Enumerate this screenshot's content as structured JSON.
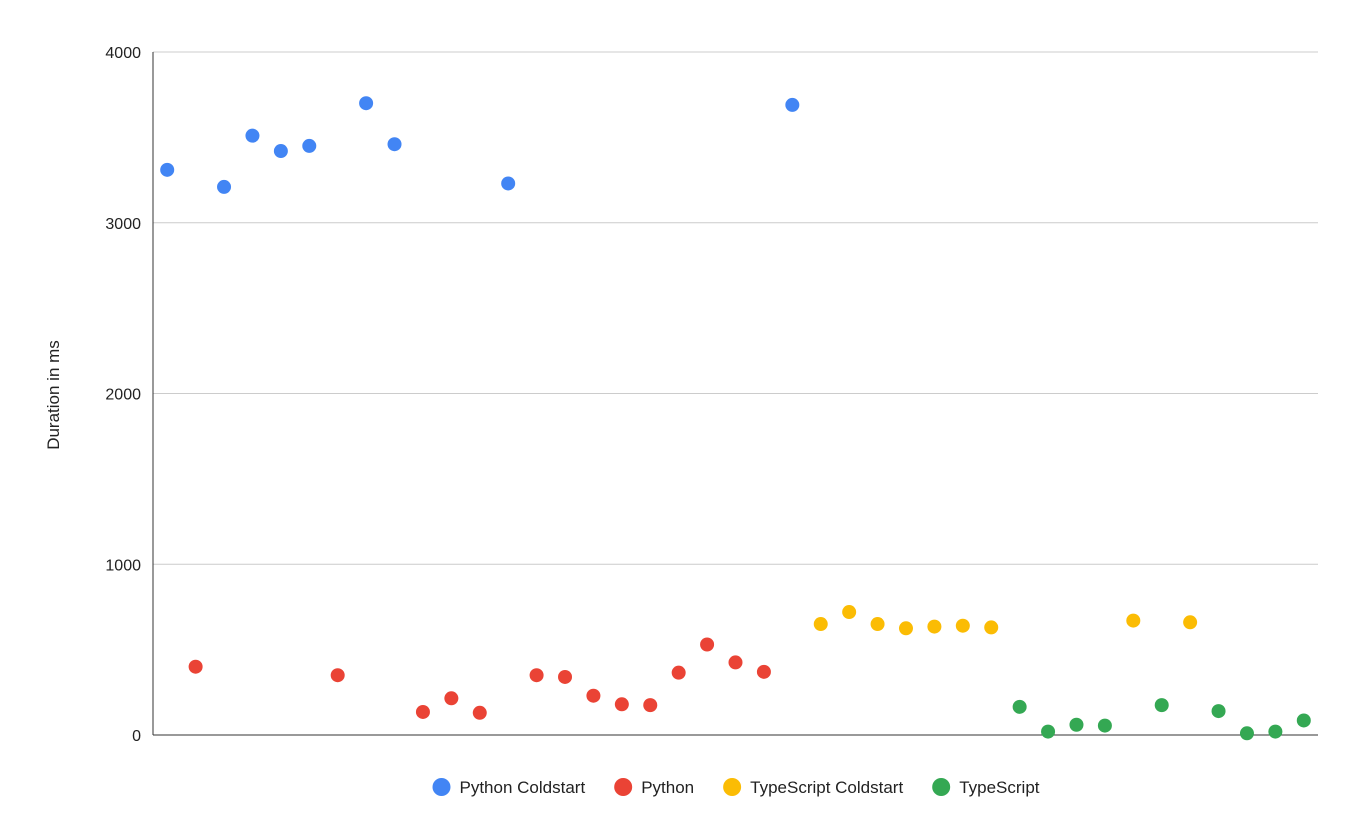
{
  "chart_data": {
    "type": "scatter",
    "title": "",
    "xlabel": "",
    "ylabel": "Duration in ms",
    "ylim": [
      0,
      4000
    ],
    "yticks": [
      "0",
      "1000",
      "2000",
      "3000",
      "4000"
    ],
    "xlim": [
      0.5,
      41.5
    ],
    "grid": true,
    "legend_position": "bottom",
    "series": [
      {
        "name": "Python Coldstart",
        "color": "#4285f4",
        "points": [
          [
            1,
            3310
          ],
          [
            3,
            3210
          ],
          [
            4,
            3510
          ],
          [
            5,
            3420
          ],
          [
            6,
            3450
          ],
          [
            8,
            3700
          ],
          [
            9,
            3460
          ],
          [
            13,
            3230
          ],
          [
            23,
            3690
          ]
        ]
      },
      {
        "name": "Python",
        "color": "#ea4335",
        "points": [
          [
            2,
            400
          ],
          [
            7,
            350
          ],
          [
            10,
            135
          ],
          [
            11,
            215
          ],
          [
            12,
            130
          ],
          [
            14,
            350
          ],
          [
            15,
            340
          ],
          [
            16,
            230
          ],
          [
            17,
            180
          ],
          [
            18,
            175
          ],
          [
            19,
            365
          ],
          [
            20,
            530
          ],
          [
            21,
            425
          ],
          [
            22,
            370
          ]
        ]
      },
      {
        "name": "TypeScript Coldstart",
        "color": "#fbbc04",
        "points": [
          [
            24,
            650
          ],
          [
            25,
            720
          ],
          [
            26,
            650
          ],
          [
            27,
            625
          ],
          [
            28,
            635
          ],
          [
            29,
            640
          ],
          [
            30,
            630
          ],
          [
            35,
            670
          ],
          [
            37,
            660
          ]
        ]
      },
      {
        "name": "TypeScript",
        "color": "#34a853",
        "points": [
          [
            31,
            165
          ],
          [
            32,
            20
          ],
          [
            33,
            60
          ],
          [
            34,
            55
          ],
          [
            36,
            175
          ],
          [
            38,
            140
          ],
          [
            39,
            10
          ],
          [
            40,
            20
          ],
          [
            41,
            85
          ]
        ]
      }
    ]
  }
}
